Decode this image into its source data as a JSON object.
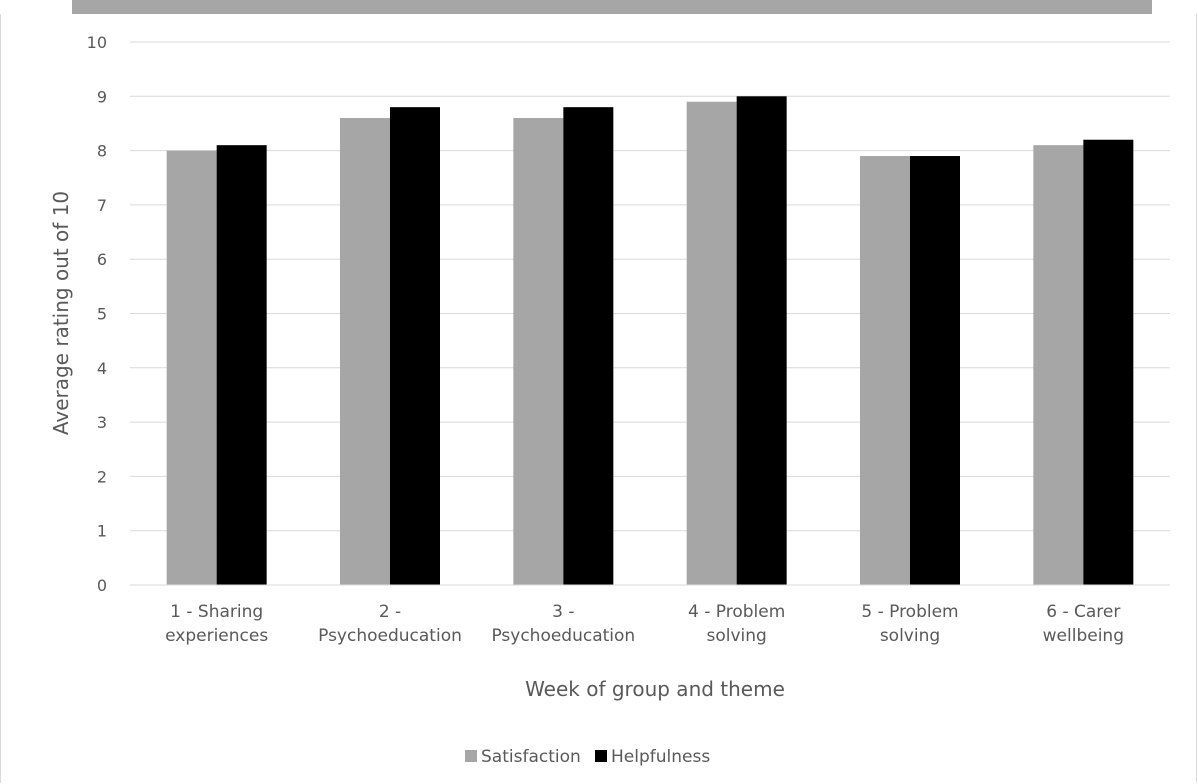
{
  "chart_data": {
    "type": "bar",
    "categories": [
      [
        "1 - Sharing",
        "experiences"
      ],
      [
        "2 -",
        "Psychoeducation"
      ],
      [
        "3 -",
        "Psychoeducation"
      ],
      [
        "4 - Problem",
        "solving"
      ],
      [
        "5 - Problem",
        "solving"
      ],
      [
        "6 - Carer",
        "wellbeing"
      ]
    ],
    "series": [
      {
        "name": "Satisfaction",
        "color": "#a6a6a6",
        "values": [
          8.0,
          8.6,
          8.6,
          8.9,
          7.9,
          8.1
        ]
      },
      {
        "name": "Helpfulness",
        "color": "#000000",
        "values": [
          8.1,
          8.8,
          8.8,
          9.0,
          7.9,
          8.2
        ]
      }
    ],
    "xlabel": "Week of group and theme",
    "ylabel": "Average rating out of 10",
    "ylim": [
      0,
      10
    ],
    "yticks": [
      "0",
      "1",
      "2",
      "3",
      "4",
      "5",
      "6",
      "7",
      "8",
      "9",
      "10"
    ],
    "grid": true,
    "legend_position": "bottom"
  }
}
